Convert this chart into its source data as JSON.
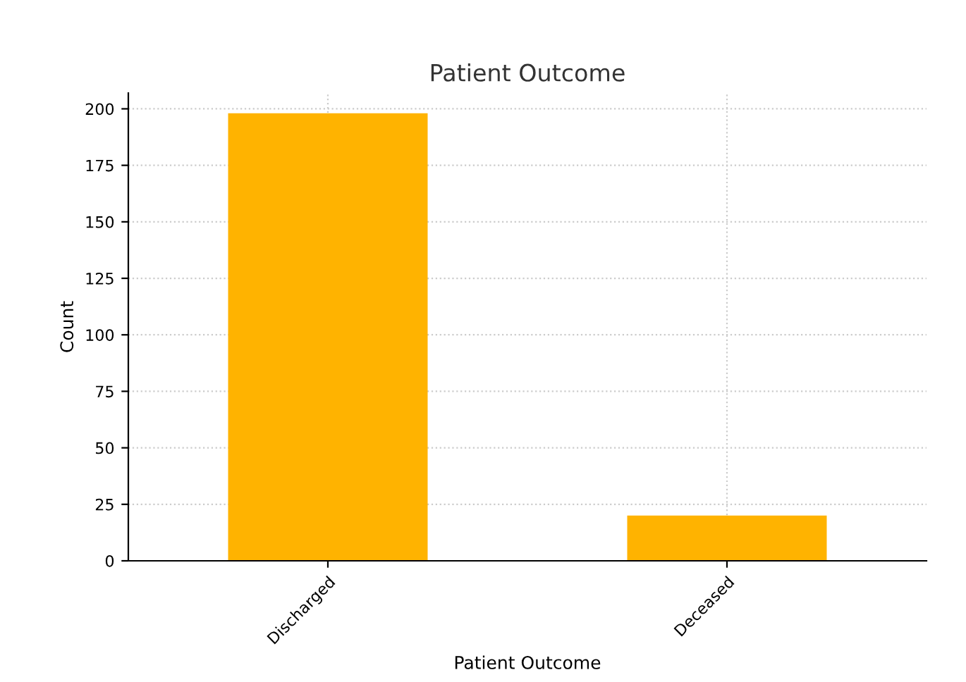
{
  "chart_data": {
    "type": "bar",
    "title": "Patient Outcome",
    "xlabel": "Patient Outcome",
    "ylabel": "Count",
    "categories": [
      "Discharged",
      "Deceased"
    ],
    "values": [
      198,
      20
    ],
    "color": "#ffb300",
    "ylim": [
      0,
      207
    ],
    "yticks": [
      0,
      25,
      50,
      75,
      100,
      125,
      150,
      175,
      200
    ],
    "grid": true
  }
}
